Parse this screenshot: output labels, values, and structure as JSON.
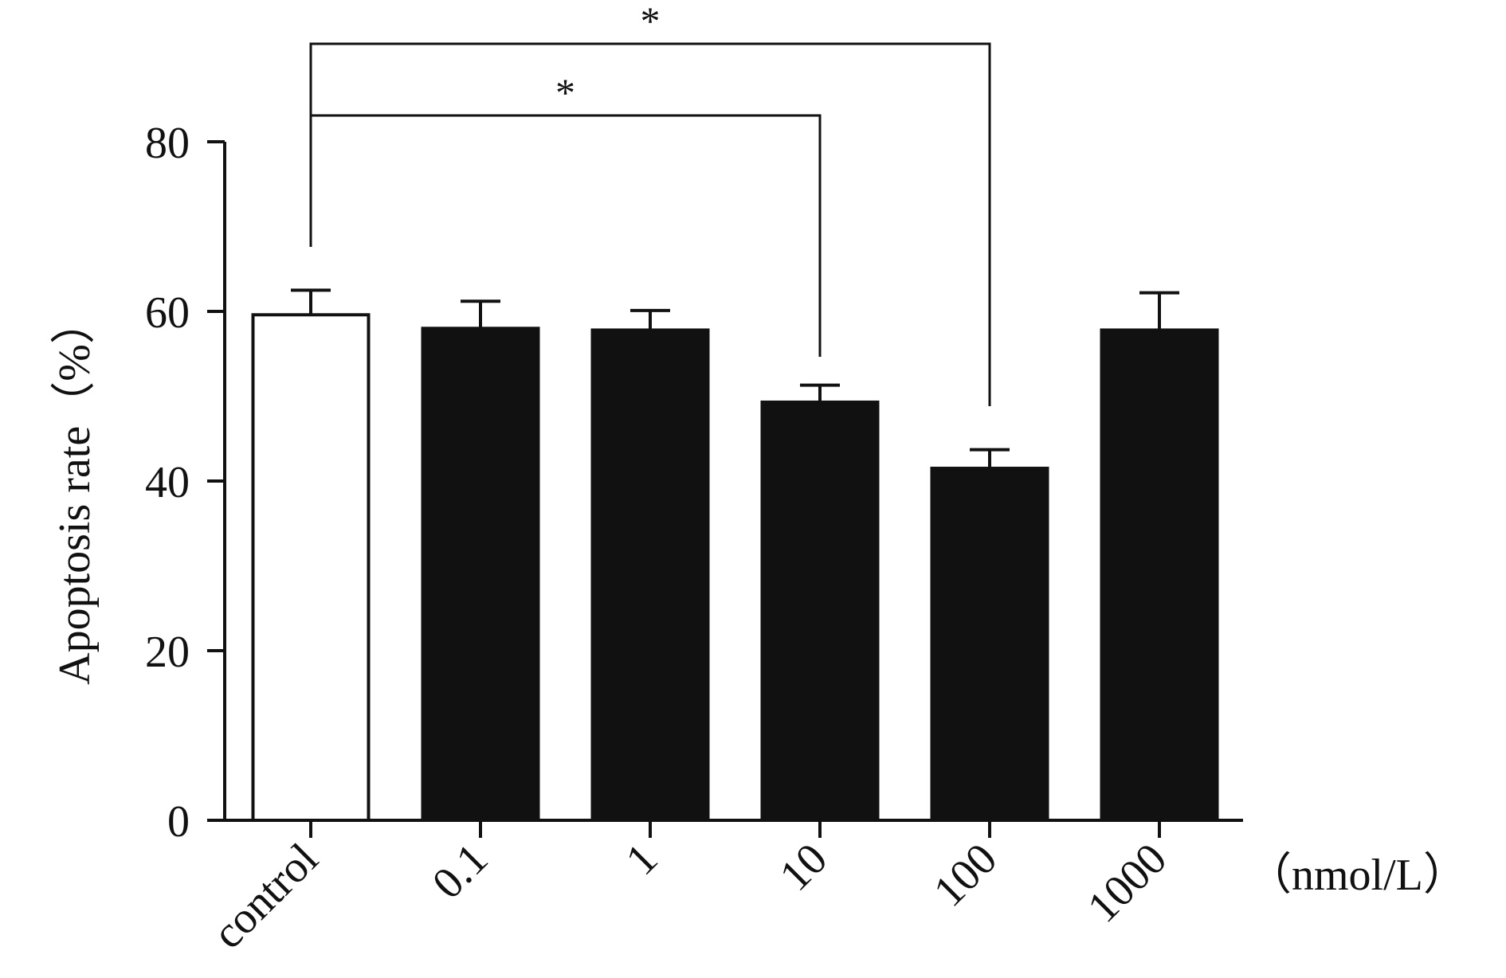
{
  "chart_data": {
    "type": "bar",
    "title": "",
    "xlabel": "",
    "ylabel": "Apoptosis rate（%）",
    "x_unit_label": "（nmol/L）",
    "categories": [
      "control",
      "0.1",
      "1",
      "10",
      "100",
      "1000"
    ],
    "values": [
      59.6,
      58.0,
      57.8,
      49.3,
      41.5,
      57.8
    ],
    "errors": [
      2.9,
      3.2,
      2.3,
      2.0,
      2.2,
      4.4
    ],
    "bar_fills": [
      "#ffffff",
      "#111111",
      "#111111",
      "#111111",
      "#111111",
      "#111111"
    ],
    "ylim": [
      0,
      80
    ],
    "yticks": [
      0,
      20,
      40,
      60,
      80
    ],
    "grid": false,
    "significance": [
      {
        "from": "control",
        "to": "10",
        "label": "*"
      },
      {
        "from": "control",
        "to": "100",
        "label": "*"
      }
    ]
  },
  "colors": {
    "axis": "#111111",
    "bar": "#111111",
    "control_bar": "#ffffff"
  }
}
